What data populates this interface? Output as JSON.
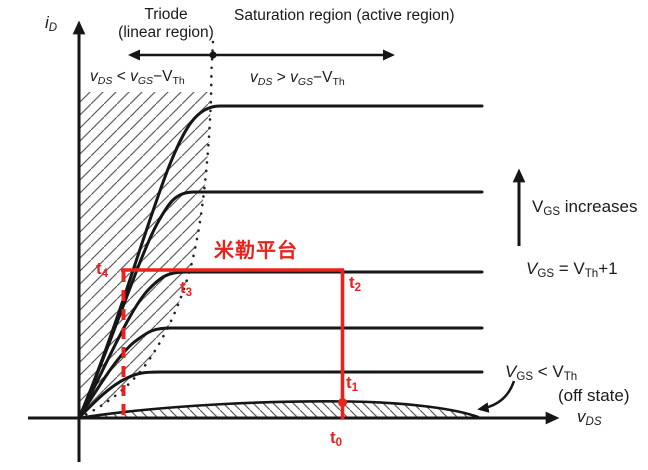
{
  "colors": {
    "annotation_red": "#e8221c",
    "curve_black": "#161616",
    "hatch_gray": "#5f5f5f",
    "background": "#ffffff"
  },
  "axes": {
    "y_label": [
      {
        "t": "i",
        "f": "i"
      },
      {
        "t": "D",
        "f": "is"
      }
    ],
    "x_label": [
      {
        "t": "v",
        "f": "i"
      },
      {
        "t": "DS",
        "f": "is"
      }
    ]
  },
  "regions": {
    "triode_title_line1": "Triode",
    "triode_title_line2": "(linear region)",
    "saturation_title": "Saturation region (active region)",
    "triode_condition": [
      {
        "t": "v",
        "f": "i"
      },
      {
        "t": "DS",
        "f": "is"
      },
      {
        "t": " < ",
        "f": "n"
      },
      {
        "t": "v",
        "f": "i"
      },
      {
        "t": "GS",
        "f": "is"
      },
      {
        "t": "−",
        "f": "n"
      },
      {
        "t": "V",
        "f": "n"
      },
      {
        "t": "Th",
        "f": "s"
      }
    ],
    "saturation_condition": [
      {
        "t": "v",
        "f": "i"
      },
      {
        "t": "DS",
        "f": "is"
      },
      {
        "t": " > ",
        "f": "n"
      },
      {
        "t": "v",
        "f": "i"
      },
      {
        "t": "GS",
        "f": "is"
      },
      {
        "t": "−",
        "f": "n"
      },
      {
        "t": "V",
        "f": "n"
      },
      {
        "t": "Th",
        "f": "s"
      }
    ]
  },
  "side_labels": {
    "vgs_increases": [
      {
        "t": "V",
        "f": "n"
      },
      {
        "t": "GS",
        "f": "s"
      },
      {
        "t": " increases",
        "f": "n"
      }
    ],
    "vgs_equals": [
      {
        "t": "V",
        "f": "i"
      },
      {
        "t": "GS",
        "f": "s"
      },
      {
        "t": " = ",
        "f": "n"
      },
      {
        "t": "V",
        "f": "n"
      },
      {
        "t": "Th",
        "f": "s"
      },
      {
        "t": "+1",
        "f": "n"
      }
    ],
    "vgs_below_threshold": [
      {
        "t": "V",
        "f": "i"
      },
      {
        "t": "GS",
        "f": "s"
      },
      {
        "t": " < ",
        "f": "n"
      },
      {
        "t": "V",
        "f": "n"
      },
      {
        "t": "Th",
        "f": "s"
      }
    ],
    "off_state": "(off state)"
  },
  "annotations": {
    "miller_plateau": "米勒平台",
    "t4": [
      {
        "t": "t",
        "f": "n"
      },
      {
        "t": "4",
        "f": "s"
      }
    ],
    "t3": [
      {
        "t": "t",
        "f": "n"
      },
      {
        "t": "3",
        "f": "s"
      }
    ],
    "t2": [
      {
        "t": "t",
        "f": "n"
      },
      {
        "t": "2",
        "f": "s"
      }
    ],
    "t1": [
      {
        "t": "t",
        "f": "n"
      },
      {
        "t": "1",
        "f": "s"
      }
    ],
    "t0": [
      {
        "t": "t",
        "f": "n"
      },
      {
        "t": "0",
        "f": "s"
      }
    ]
  }
}
